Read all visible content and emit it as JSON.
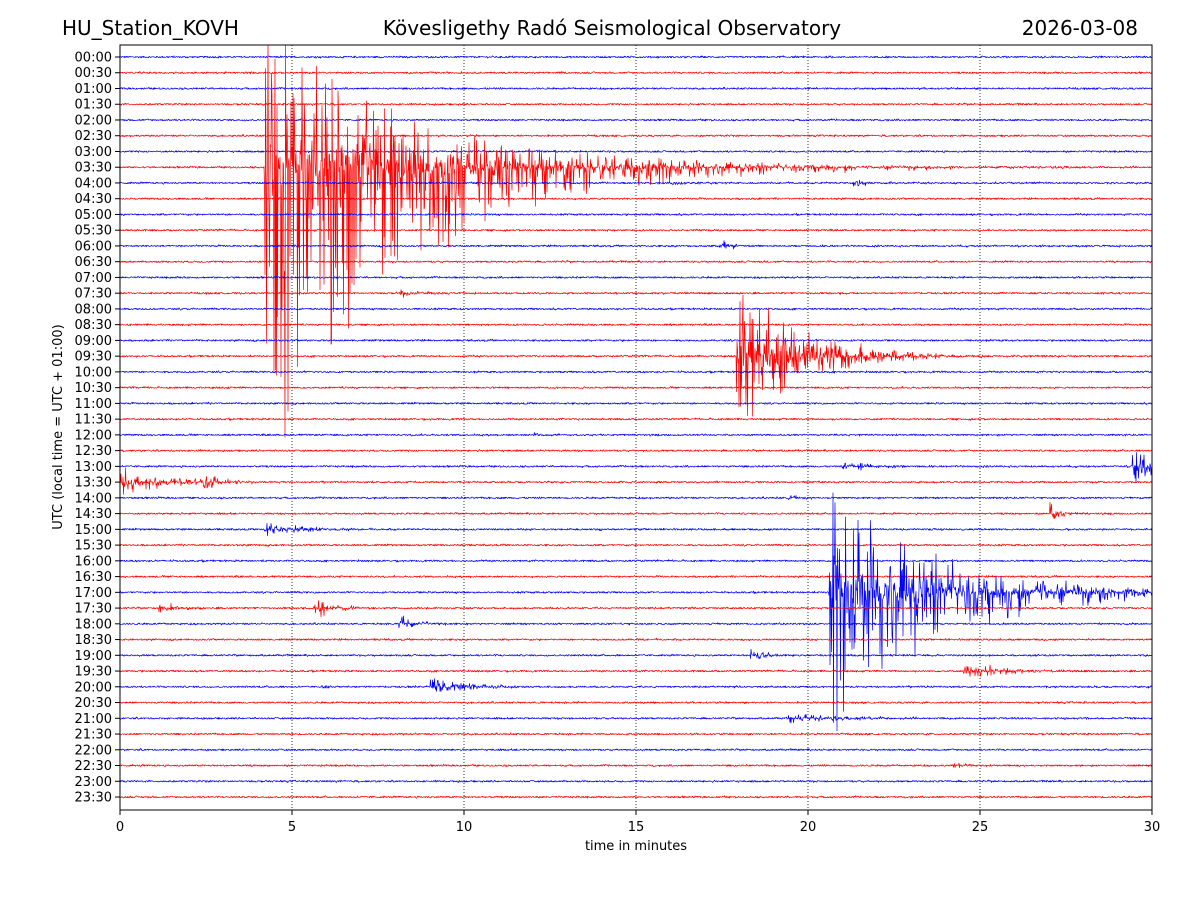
{
  "chart_data": {
    "type": "line",
    "title_left": "HU_Station_KOVH",
    "title": "Kövesligethy Radó Seismological Observatory",
    "title_right": "2026-03-08",
    "xlabel": "time in minutes",
    "ylabel": "UTC (local time = UTC + 01:00)",
    "xlim": [
      0,
      30
    ],
    "xticks": [
      0,
      5,
      10,
      15,
      20,
      25,
      30
    ],
    "grid": "vertical dotted at x ticks",
    "colors": [
      "#0000ff",
      "#ff0000"
    ],
    "rows": [
      "00:00",
      "00:30",
      "01:00",
      "01:30",
      "02:00",
      "02:30",
      "03:00",
      "03:30",
      "04:00",
      "04:30",
      "05:00",
      "05:30",
      "06:00",
      "06:30",
      "07:00",
      "07:30",
      "08:00",
      "08:30",
      "09:00",
      "09:30",
      "10:00",
      "10:30",
      "11:00",
      "11:30",
      "12:00",
      "12:30",
      "13:00",
      "13:30",
      "14:00",
      "14:30",
      "15:00",
      "15:30",
      "16:00",
      "16:30",
      "17:00",
      "17:30",
      "18:00",
      "18:30",
      "19:00",
      "19:30",
      "20:00",
      "20:30",
      "21:00",
      "21:30",
      "22:00",
      "22:30",
      "23:00",
      "23:30"
    ],
    "noise_amplitude_rows": 0.05,
    "events": [
      {
        "row": "03:30",
        "start_min": 4.2,
        "peak_up_rows": 9,
        "peak_down_rows": 19,
        "duration_min": 12
      },
      {
        "row": "04:00",
        "start_min": 16.0,
        "peak_up_rows": 0.15,
        "peak_down_rows": 0.15,
        "duration_min": 2
      },
      {
        "row": "04:00",
        "start_min": 21.3,
        "peak_up_rows": 0.35,
        "peak_down_rows": 0.3,
        "duration_min": 1.5
      },
      {
        "row": "06:00",
        "start_min": 17.4,
        "peak_up_rows": 0.45,
        "peak_down_rows": 0.45,
        "duration_min": 1.5
      },
      {
        "row": "07:30",
        "start_min": 8.1,
        "peak_up_rows": 0.3,
        "peak_down_rows": 0.3,
        "duration_min": 2
      },
      {
        "row": "09:30",
        "start_min": 17.9,
        "peak_up_rows": 5.5,
        "peak_down_rows": 5.4,
        "duration_min": 5
      },
      {
        "row": "09:30",
        "start_min": 21.5,
        "peak_up_rows": 0.4,
        "peak_down_rows": 0.4,
        "duration_min": 1.5
      },
      {
        "row": "12:00",
        "start_min": 12.0,
        "peak_up_rows": 0.1,
        "peak_down_rows": 0.1,
        "duration_min": 2
      },
      {
        "row": "13:00",
        "start_min": 21.0,
        "peak_up_rows": 0.4,
        "peak_down_rows": 0.4,
        "duration_min": 3
      },
      {
        "row": "13:00",
        "start_min": 29.4,
        "peak_up_rows": 1.3,
        "peak_down_rows": 1.2,
        "duration_min": 3
      },
      {
        "row": "13:30",
        "start_min": 0.0,
        "peak_up_rows": 1.0,
        "peak_down_rows": 0.9,
        "duration_min": 4
      },
      {
        "row": "13:30",
        "start_min": 2.4,
        "peak_up_rows": 0.5,
        "peak_down_rows": 0.5,
        "duration_min": 2
      },
      {
        "row": "14:00",
        "start_min": 19.4,
        "peak_up_rows": 0.15,
        "peak_down_rows": 0.15,
        "duration_min": 1.5
      },
      {
        "row": "14:30",
        "start_min": 27.0,
        "peak_up_rows": 0.9,
        "peak_down_rows": 0.6,
        "duration_min": 1
      },
      {
        "row": "15:00",
        "start_min": 4.2,
        "peak_up_rows": 0.5,
        "peak_down_rows": 0.5,
        "duration_min": 3.5
      },
      {
        "row": "17:00",
        "start_min": 20.6,
        "peak_up_rows": 6.4,
        "peak_down_rows": 9.2,
        "duration_min": 9
      },
      {
        "row": "17:30",
        "start_min": 1.1,
        "peak_up_rows": 0.6,
        "peak_down_rows": 0.5,
        "duration_min": 1.5
      },
      {
        "row": "17:30",
        "start_min": 5.6,
        "peak_up_rows": 1.2,
        "peak_down_rows": 1.0,
        "duration_min": 1.5
      },
      {
        "row": "18:00",
        "start_min": 8.1,
        "peak_up_rows": 0.7,
        "peak_down_rows": 0.5,
        "duration_min": 1.5
      },
      {
        "row": "18:30",
        "start_min": 15.0,
        "peak_up_rows": 0.1,
        "peak_down_rows": 0.1,
        "duration_min": 1.5
      },
      {
        "row": "19:00",
        "start_min": 18.3,
        "peak_up_rows": 0.5,
        "peak_down_rows": 0.4,
        "duration_min": 1.5
      },
      {
        "row": "19:30",
        "start_min": 24.5,
        "peak_up_rows": 0.8,
        "peak_down_rows": 0.8,
        "duration_min": 3
      },
      {
        "row": "20:00",
        "start_min": 5.8,
        "peak_up_rows": 0.2,
        "peak_down_rows": 0.2,
        "duration_min": 1
      },
      {
        "row": "20:00",
        "start_min": 9.0,
        "peak_up_rows": 0.7,
        "peak_down_rows": 0.6,
        "duration_min": 3
      },
      {
        "row": "21:00",
        "start_min": 19.4,
        "peak_up_rows": 0.35,
        "peak_down_rows": 0.3,
        "duration_min": 5
      },
      {
        "row": "22:30",
        "start_min": 24.2,
        "peak_up_rows": 0.2,
        "peak_down_rows": 0.2,
        "duration_min": 1.2
      }
    ]
  }
}
